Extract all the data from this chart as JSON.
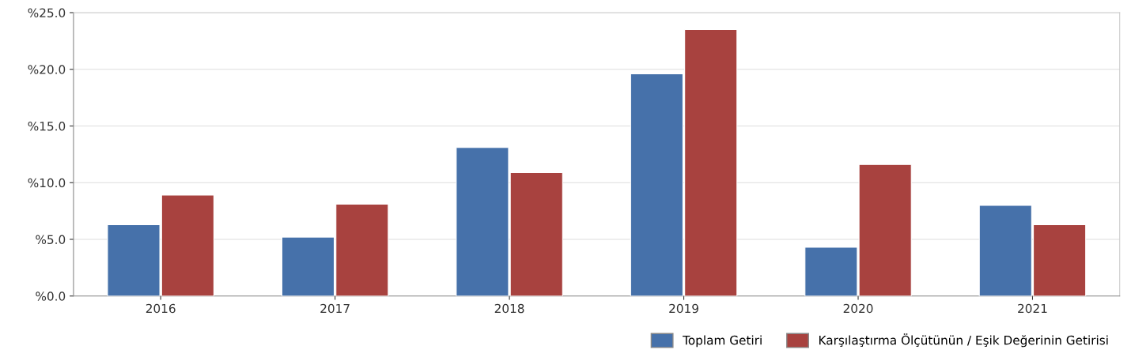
{
  "chart_data": {
    "type": "bar",
    "categories": [
      "2016",
      "2017",
      "2018",
      "2019",
      "2020",
      "2021"
    ],
    "series": [
      {
        "name": "Toplam Getiri",
        "color": "#4671aa",
        "values": [
          6.3,
          5.2,
          13.1,
          19.6,
          4.3,
          8.0
        ]
      },
      {
        "name": "Karşılaştırma Ölçütünün / Eşik Değerinin Getirisi",
        "color": "#a8423f",
        "values": [
          8.9,
          8.1,
          10.9,
          23.5,
          11.6,
          6.3
        ]
      }
    ],
    "ylim": [
      0,
      25
    ],
    "yticks": [
      {
        "value": 0,
        "label": "%0.0"
      },
      {
        "value": 5,
        "label": "%5.0"
      },
      {
        "value": 10,
        "label": "%10.0"
      },
      {
        "value": 15,
        "label": "%15.0"
      },
      {
        "value": 20,
        "label": "%20.0"
      },
      {
        "value": 25,
        "label": "%25.0"
      }
    ],
    "grid": "y",
    "legend": "bottom right"
  }
}
